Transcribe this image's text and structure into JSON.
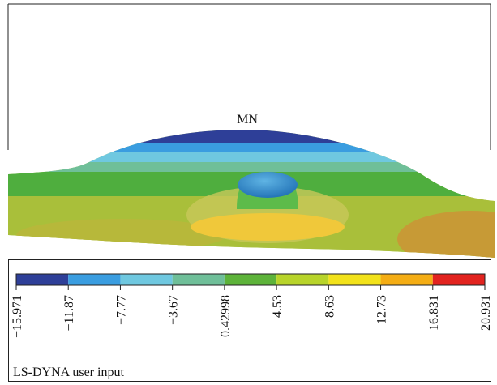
{
  "figure": {
    "label": "MN",
    "footer": "LS-DYNA user input"
  },
  "colorbar": {
    "colors": [
      "#2e3f98",
      "#3a9de0",
      "#6fc8e0",
      "#6fbf99",
      "#5db33a",
      "#b8d42a",
      "#f2e21a",
      "#f4ad14",
      "#e2231f"
    ],
    "ticks": [
      "−15.971",
      "−11.87",
      "−7.77",
      "−3.67",
      "0.42998",
      "4.53",
      "8.63",
      "12.73",
      "16.831",
      "20.931"
    ]
  }
}
